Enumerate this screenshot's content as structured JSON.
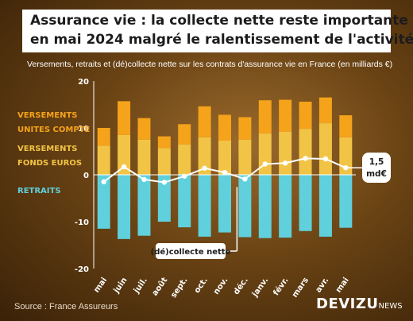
{
  "title_lines": [
    "Assurance vie : la collecte nette reste importante",
    "en mai 2024 malgré le ralentissement de l'activité"
  ],
  "subtitle": "Versements, retraits et (dé)collecte nette sur les contrats d'assurance vie en France (en milliards €)",
  "source": "Source : France Assureurs",
  "logo": {
    "brand": "DEVIZU",
    "suffix": "NEWS"
  },
  "colors": {
    "versements_uc": "#f5a31a",
    "versements_euros": "#f2c446",
    "retraits": "#5fd0dc",
    "collecte_line": "#ffffff",
    "legend_uc": "#f5a31a",
    "legend_euros": "#f2c446",
    "legend_retraits": "#5fd0dc"
  },
  "chart_data": {
    "type": "bar",
    "stacked": true,
    "categories": [
      "mai",
      "juin",
      "juil.",
      "août",
      "sept.",
      "oct.",
      "nov.",
      "déc.",
      "janv.",
      "févr.",
      "mars",
      "avr.",
      "mai"
    ],
    "series": [
      {
        "name": "VERSEMENTS FONDS EUROS",
        "values": [
          6.2,
          8.5,
          7.5,
          5.7,
          6.5,
          8.0,
          7.3,
          7.5,
          8.8,
          9.2,
          9.8,
          11.0,
          8.0
        ]
      },
      {
        "name": "VERSEMENTS UNITES COMPTE",
        "values": [
          3.8,
          7.2,
          4.6,
          2.5,
          4.3,
          6.6,
          5.5,
          4.8,
          7.1,
          6.8,
          5.8,
          5.5,
          4.7
        ]
      },
      {
        "name": "RETRAITS",
        "values": [
          -11.5,
          -13.7,
          -13.0,
          -10.0,
          -11.2,
          -13.2,
          -12.3,
          -13.3,
          -13.5,
          -13.4,
          -12.0,
          -13.2,
          -11.3
        ]
      },
      {
        "name": "(dé)collecte nette",
        "type": "line",
        "values": [
          -1.5,
          1.7,
          -1.0,
          -1.6,
          -0.3,
          1.4,
          0.5,
          -0.9,
          2.3,
          2.5,
          3.5,
          3.4,
          1.5
        ]
      }
    ],
    "ylim": [
      -20,
      20
    ],
    "yticks": [
      -20,
      -10,
      0,
      10,
      20
    ],
    "grid": false,
    "annotations": {
      "last_value": [
        "1,5",
        "md€"
      ],
      "line_label": "(dé)collecte nette"
    }
  }
}
